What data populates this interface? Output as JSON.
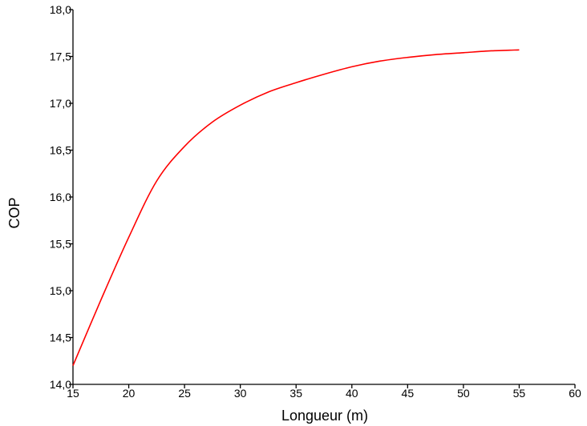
{
  "chart_data": {
    "type": "line",
    "title": "",
    "xlabel": "Longueur (m)",
    "ylabel": "COP",
    "xlim": [
      15,
      60
    ],
    "ylim": [
      14.0,
      18.0
    ],
    "x_ticks": [
      "15",
      "20",
      "25",
      "30",
      "35",
      "40",
      "45",
      "50",
      "55",
      "60"
    ],
    "y_ticks": [
      "14,0",
      "14,5",
      "15,0",
      "15,5",
      "16,0",
      "16,5",
      "17,0",
      "17,5",
      "18,0"
    ],
    "grid": false,
    "legend": "none",
    "series": [
      {
        "color": "#ff0000",
        "x": [
          15,
          17.5,
          20,
          22.5,
          25,
          27.5,
          30,
          32.5,
          35,
          37.5,
          40,
          42.5,
          45,
          47.5,
          50,
          52.5,
          55
        ],
        "y": [
          14.2,
          14.9,
          15.57,
          16.17,
          16.54,
          16.8,
          16.98,
          17.12,
          17.22,
          17.31,
          17.39,
          17.45,
          17.49,
          17.52,
          17.54,
          17.56,
          17.57
        ]
      }
    ]
  }
}
